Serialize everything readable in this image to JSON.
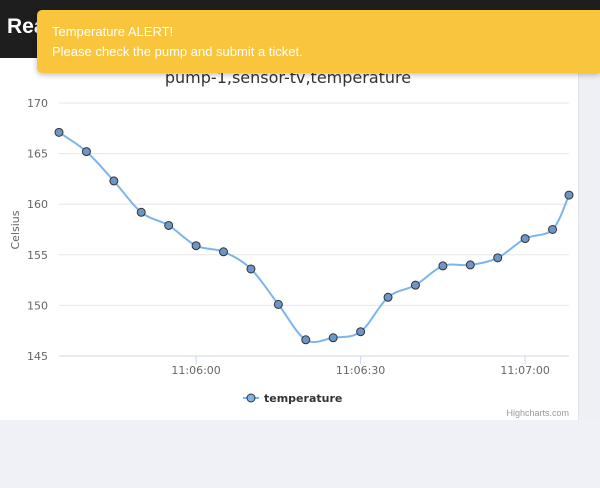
{
  "navbar": {
    "brand": "Rea"
  },
  "alert": {
    "title": "Temperature ALERT!",
    "message": "Please check the pump and submit a ticket.",
    "color": "#f9c53d"
  },
  "chart_data": {
    "type": "line",
    "title": "pump-1,sensor-tv,temperature",
    "ylabel": "Celsius",
    "xlabel": "",
    "ylim": [
      145,
      170
    ],
    "yticks": [
      145,
      150,
      155,
      160,
      165,
      170
    ],
    "xlim": [
      "11:05:35",
      "11:07:08"
    ],
    "xticks": [
      "11:06:00",
      "11:06:30",
      "11:07:00"
    ],
    "grid": true,
    "legend_position": "bottom-center",
    "series_color": "#7cb5ec",
    "series": [
      {
        "name": "temperature",
        "x": [
          "11:05:35",
          "11:05:40",
          "11:05:45",
          "11:05:50",
          "11:05:55",
          "11:06:00",
          "11:06:05",
          "11:06:10",
          "11:06:15",
          "11:06:20",
          "11:06:25",
          "11:06:30",
          "11:06:35",
          "11:06:40",
          "11:06:45",
          "11:06:50",
          "11:06:55",
          "11:07:00",
          "11:07:05",
          "11:07:08"
        ],
        "values": [
          167.1,
          165.2,
          162.3,
          159.2,
          157.9,
          155.9,
          155.3,
          153.6,
          150.1,
          146.6,
          146.8,
          147.4,
          150.8,
          152.0,
          153.9,
          154.0,
          154.7,
          156.6,
          157.5,
          160.9
        ]
      }
    ],
    "credits": "Highcharts.com"
  }
}
